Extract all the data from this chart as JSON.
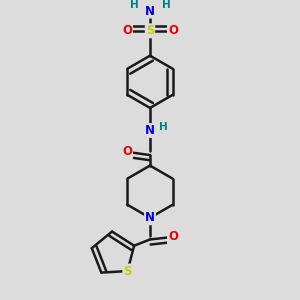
{
  "bg_color": "#dcdcdc",
  "bond_color": "#1a1a1a",
  "bond_width": 1.8,
  "colors": {
    "N": "#0000ee",
    "O": "#ee0000",
    "S_so2": "#cccc00",
    "S_th": "#cccc00",
    "H": "#008080"
  },
  "font_size_atom": 8.5,
  "font_size_h": 7.5,
  "xlim": [
    0.15,
    0.85
  ],
  "ylim": [
    0.04,
    0.97
  ]
}
